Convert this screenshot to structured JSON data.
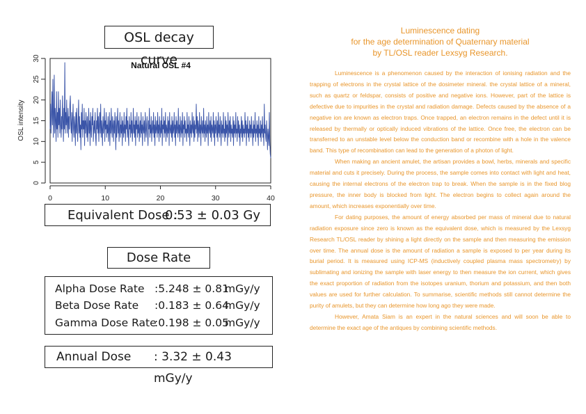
{
  "chart_title_box": "OSL decay curve",
  "chart_data": {
    "type": "line",
    "title": "Natural OSL #4",
    "xlabel": "",
    "ylabel": "OSL intensity",
    "xlim": [
      0,
      40
    ],
    "ylim": [
      0,
      30
    ],
    "xticks": [
      "0",
      "10",
      "20",
      "30",
      "40"
    ],
    "yticks": [
      "0",
      "5",
      "10",
      "15",
      "20",
      "25",
      "30"
    ],
    "grid": false,
    "legend": "none",
    "line_color": "#3b55a8",
    "series": [
      {
        "values": [
          13,
          19,
          12,
          17,
          22,
          14,
          25,
          11,
          16,
          26,
          12,
          18,
          15,
          10,
          22,
          13,
          17,
          11,
          22,
          14,
          18,
          12,
          20,
          14,
          11,
          16,
          13,
          21,
          15,
          10,
          18,
          13,
          29,
          12,
          17,
          14,
          20,
          12,
          15,
          18,
          11,
          16,
          13,
          19,
          21,
          14,
          12,
          17,
          10,
          15,
          19,
          13,
          11,
          16,
          14,
          9,
          17,
          12,
          18,
          13,
          10,
          15,
          20,
          12,
          16,
          11,
          14,
          8,
          17,
          13,
          19,
          11,
          15,
          13,
          18,
          9,
          15,
          12,
          17,
          14,
          11,
          16,
          10,
          13,
          18,
          12,
          15,
          9,
          17,
          13,
          11,
          16,
          14,
          18,
          10,
          13,
          15,
          12,
          17,
          11,
          9,
          15,
          13,
          18,
          12,
          16,
          10,
          14,
          17,
          12,
          19,
          11,
          15,
          13,
          9,
          16,
          12,
          14,
          18,
          10,
          15,
          13,
          17,
          11,
          14,
          12,
          16,
          10,
          13,
          17,
          9,
          15,
          12,
          18,
          13,
          11,
          16,
          14,
          10,
          15,
          12,
          17,
          13,
          8,
          16,
          11,
          14,
          18,
          12,
          15,
          10,
          13,
          17,
          11,
          14,
          12,
          16,
          9,
          15,
          13,
          11,
          17,
          12,
          14,
          10,
          16,
          13,
          18,
          11,
          15,
          12,
          9,
          16,
          13,
          14,
          11,
          17,
          12,
          15,
          10,
          13,
          18,
          12,
          14,
          11,
          16,
          9,
          15,
          13,
          17,
          11,
          14,
          12,
          16,
          10,
          13,
          15,
          11,
          17,
          12,
          14,
          9,
          16,
          13,
          12,
          15,
          10,
          17,
          13,
          11,
          14,
          16,
          12,
          9,
          15,
          13,
          18,
          11,
          14,
          12,
          16,
          10,
          13,
          15,
          12,
          17,
          11,
          14,
          9,
          16,
          12,
          13,
          15,
          11,
          17,
          12,
          14,
          10,
          16,
          13,
          11,
          15,
          12,
          18,
          9,
          14,
          13,
          16,
          11,
          15,
          12,
          17,
          10,
          14,
          13,
          11,
          16,
          12,
          15,
          9,
          17,
          13,
          12,
          14,
          11,
          16,
          10,
          15,
          12,
          13,
          17,
          11,
          14,
          9,
          16,
          12,
          15,
          13,
          11,
          18,
          12,
          14,
          10,
          16,
          13,
          11,
          15,
          12,
          17,
          9,
          14,
          13,
          16,
          11,
          15,
          12,
          13,
          10,
          17,
          12,
          14,
          11,
          16,
          13,
          9,
          15,
          12,
          14,
          11,
          17,
          13,
          12,
          16,
          10,
          15,
          11,
          14,
          13,
          19,
          12,
          16,
          10,
          15,
          13,
          11,
          17,
          12,
          14,
          9,
          16,
          13,
          12,
          15,
          11,
          18,
          12,
          14,
          10,
          15,
          13,
          11,
          16,
          12,
          14,
          9,
          17,
          13,
          12,
          15,
          11,
          16,
          10,
          14,
          13,
          12,
          17,
          11,
          15,
          9,
          14,
          12,
          16,
          13,
          11,
          15,
          10,
          17,
          12,
          14,
          11,
          16,
          13,
          9,
          15,
          12,
          14,
          11,
          17,
          12,
          13,
          10,
          16,
          11,
          15,
          12,
          14,
          9,
          17,
          13,
          11,
          15,
          12,
          16,
          10,
          14,
          12,
          13,
          11,
          16,
          9,
          15,
          12,
          14,
          11,
          17,
          12,
          13,
          10,
          16,
          12,
          15,
          11,
          14,
          9,
          13,
          12,
          16,
          11,
          15,
          10,
          14,
          12,
          13,
          11,
          17,
          12,
          15,
          9,
          14,
          12,
          16,
          11,
          13,
          10,
          15,
          12,
          14,
          11,
          16,
          12,
          13,
          9,
          15,
          11,
          14,
          12,
          17,
          10,
          13,
          12,
          15,
          11,
          14,
          9,
          16,
          12,
          13,
          11,
          15,
          10,
          14,
          12,
          16,
          11,
          13,
          9,
          19,
          12,
          14,
          11,
          10,
          15,
          12,
          8,
          13,
          11,
          9,
          17,
          10,
          7,
          6
        ]
      }
    ]
  },
  "equivalent_dose": {
    "label": "Equivalent Dose :",
    "value": "0.53 ± 0.03 Gy"
  },
  "dose_rate_title": "Dose Rate",
  "dose_rates": [
    {
      "name": "Alpha Dose Rate",
      "value": ":5.248 ± 0.81",
      "unit": "mGy/y"
    },
    {
      "name": "Beta Dose Rate",
      "value": ":0.183 ± 0.64",
      "unit": "mGy/y"
    },
    {
      "name": "Gamma Dose Rate",
      "value": ":0.198 ± 0.05",
      "unit": "mGy/y"
    }
  ],
  "annual_dose": {
    "label": "Annual Dose",
    "value": ": 3.32 ± 0.43 mGy/y"
  },
  "article": {
    "title_lines": [
      "Luminescence dating",
      "for the age determination of Quaternary material",
      "by TL/OSL reader Lexsyg Research."
    ],
    "paragraphs": [
      "Luminescence is a phenomenon caused by the interaction of ionising radiation and the trapping of electrons in the crystal lattice of the dosimeter mineral. the crystal lattice of a mineral, such as quartz or feldspar, consists of positive and negative ions. However, part of the lattice is defective due to impurities in the crystal and radiation damage. Defects caused by the absence of a negative ion are known as electron traps. Once trapped, an electron remains in the defect until it is released by thermally or optically induced vibrations of the lattice. Once free, the electron can be transferred to an unstable level below the conduction band or recombine with a hole in the valence band. This type of recombination can lead to the generation of a photon of light.",
      "When making an ancient amulet, the artisan provides a bowl, herbs, minerals and specific material and cuts it precisely. During the process, the sample comes into contact with light and heat, causing the internal electrons of the electron trap to break. When the sample is in the fixed blog pressure, the inner body is blocked from light. The electron begins to collect again around the amount, which increases exponentially over time.",
      "For dating purposes, the amount of energy absorbed per mass of mineral due to natural radiation exposure since zero is known as the equivalent dose, which is measured by the Lexsyg Research TL/OSL reader by shining a light directly on the sample and then measuring the emission over time. The annual dose is the amount of radiation a sample is exposed to per year during its burial period. It is measured using ICP-MS (inductively coupled plasma mass spectrometry) by sublimating and ionizing the sample with laser energy to then measure the ion current, which gives the exact proportion of radiation from the isotopes uranium, thorium and potassium, and then both values are used for further calculation. To summarise, scientific methods still cannot determine the purity of amulets, but they can determine how long ago they were made.",
      "However, Amata Siam is an expert in the natural sciences and will soon be able to determine the exact age of the antiques by combining scientific methods."
    ]
  }
}
